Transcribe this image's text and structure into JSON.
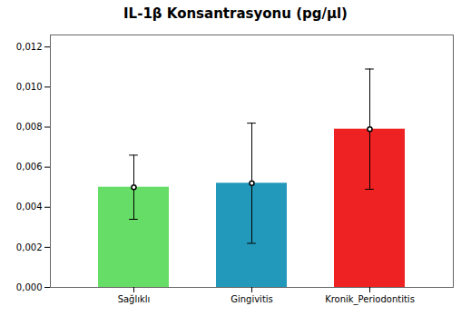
{
  "chart_data": {
    "type": "bar",
    "title": "IL-1β Konsantrasyonu (pg/µl)",
    "categories": [
      "Sağlıklı",
      "Gingivitis",
      "Kronik_Periodontitis"
    ],
    "values": [
      0.005,
      0.0052,
      0.0079
    ],
    "error_upper": [
      0.0016,
      0.003,
      0.003
    ],
    "error_lower": [
      0.0016,
      0.003,
      0.003
    ],
    "colors": [
      "#66dd66",
      "#2299bb",
      "#ee2222"
    ],
    "ylim": [
      0,
      0.0126
    ],
    "yticks": [
      {
        "value": 0.0,
        "label": "0,000"
      },
      {
        "value": 0.002,
        "label": "0,002"
      },
      {
        "value": 0.004,
        "label": "0,004"
      },
      {
        "value": 0.006,
        "label": "0,006"
      },
      {
        "value": 0.008,
        "label": "0,008"
      },
      {
        "value": 0.01,
        "label": "0,010"
      },
      {
        "value": 0.012,
        "label": "0,012"
      }
    ],
    "grid": false
  }
}
